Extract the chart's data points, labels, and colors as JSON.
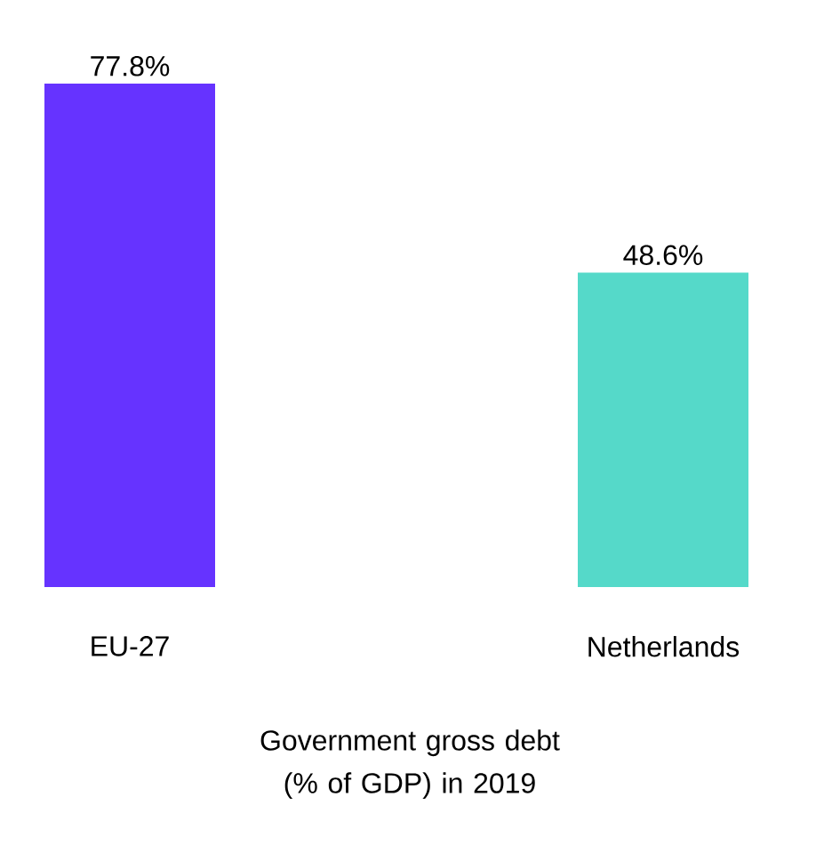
{
  "chart_data": {
    "type": "bar",
    "categories": [
      "EU-27",
      "Netherlands"
    ],
    "values": [
      77.8,
      48.6
    ],
    "value_labels": [
      "77.8%",
      "48.6%"
    ],
    "colors": [
      "#6633ff",
      "#55d9c9"
    ],
    "xlabel": "Government gross debt (% of GDP) in 2019"
  }
}
